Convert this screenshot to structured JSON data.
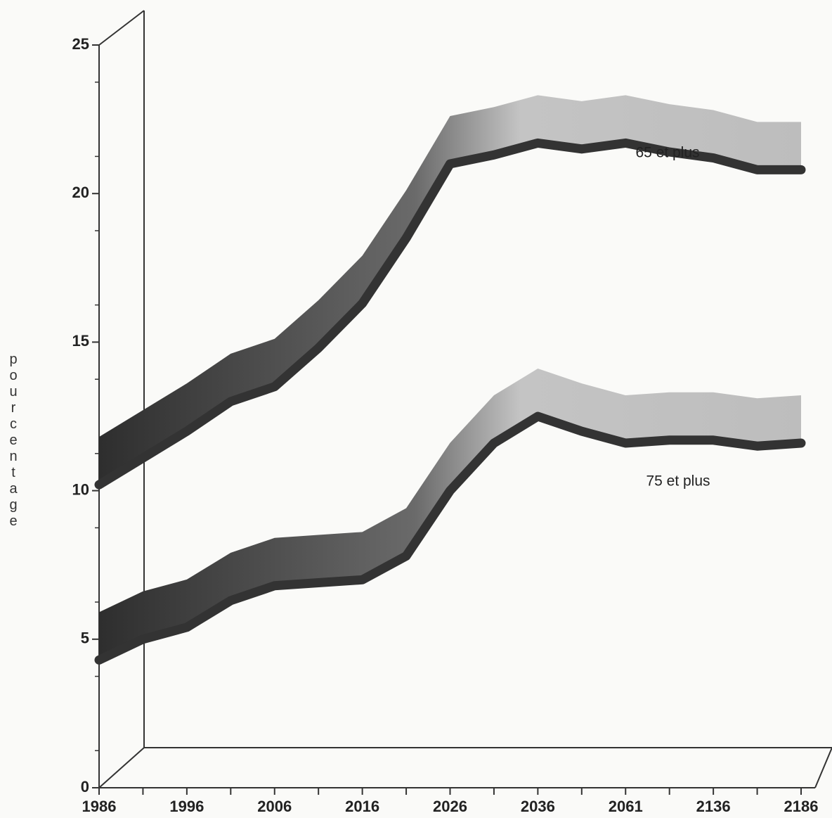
{
  "chart_data": {
    "type": "line",
    "y_label": "pourcentage",
    "categories": [
      "1986",
      null,
      "1996",
      null,
      "2006",
      null,
      "2016",
      null,
      "2026",
      null,
      "2036",
      null,
      "2061",
      null,
      "2136",
      null,
      "2186"
    ],
    "series": [
      {
        "name": "65 et plus",
        "color": "#333333",
        "values": [
          10.2,
          11.1,
          12.0,
          13.0,
          13.5,
          14.8,
          16.3,
          18.5,
          21.0,
          21.3,
          21.7,
          21.5,
          21.7,
          21.4,
          21.2,
          20.8,
          20.8
        ]
      },
      {
        "name": "75 et plus",
        "color": "#333333",
        "values": [
          4.3,
          5.0,
          5.4,
          6.3,
          6.8,
          6.9,
          7.0,
          7.8,
          10.0,
          11.6,
          12.5,
          12.0,
          11.6,
          11.7,
          11.7,
          11.5,
          11.6
        ]
      }
    ],
    "ylim": [
      0,
      25
    ],
    "yticks": [
      0,
      5,
      10,
      15,
      20,
      25
    ]
  }
}
